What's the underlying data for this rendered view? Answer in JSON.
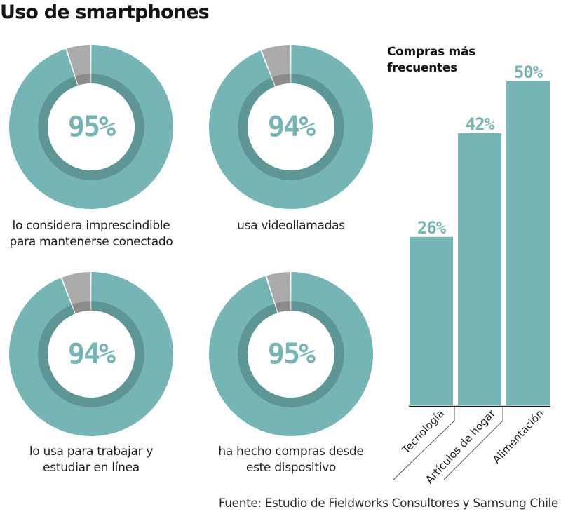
{
  "title": "Uso de smartphones",
  "source": "Fuente: Estudio de Fieldworks Consultores y Samsung Chile",
  "colors": {
    "teal": "#76b5b5",
    "teal_dark": "#5e9595",
    "grey": "#ababab",
    "grey_dark": "#8c8c8c",
    "text": "#1c1c1c"
  },
  "chart_data": [
    {
      "type": "pie",
      "title": "Uso de smartphones",
      "donuts": [
        {
          "value": 95,
          "label_text": "95%",
          "caption": [
            "lo considera imprescindible",
            "para mantenerse conectado"
          ]
        },
        {
          "value": 94,
          "label_text": "94%",
          "caption": [
            "usa videollamadas"
          ]
        },
        {
          "value": 94,
          "label_text": "94%",
          "caption": [
            "lo usa para trabajar y",
            "estudiar en línea"
          ]
        },
        {
          "value": 95,
          "label_text": "95%",
          "caption": [
            "ha hecho compras desde",
            "este dispositivo"
          ]
        }
      ]
    },
    {
      "type": "bar",
      "title": "Compras más frecuentes",
      "title_lines": [
        "Compras más",
        "frecuentes"
      ],
      "categories": [
        "Tecnología",
        "Artículos de hogar",
        "Alimentación"
      ],
      "values": [
        26,
        42,
        50
      ],
      "value_labels": [
        "26%",
        "42%",
        "50%"
      ],
      "xlabel": "",
      "ylabel": "",
      "ylim": [
        0,
        50
      ],
      "grid": false,
      "legend": "none"
    }
  ]
}
